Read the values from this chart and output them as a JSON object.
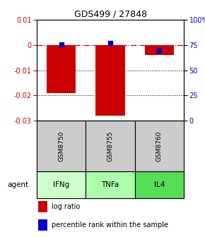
{
  "title": "GDS499 / 27848",
  "samples": [
    "GSM8750",
    "GSM8755",
    "GSM8760"
  ],
  "agents": [
    "IFNg",
    "TNFa",
    "IL4"
  ],
  "log_ratios": [
    -0.019,
    -0.028,
    -0.004
  ],
  "percentile_ranks": [
    75.5,
    77.0,
    69.0
  ],
  "ylim_left": [
    -0.03,
    0.01
  ],
  "ylim_right": [
    0,
    100
  ],
  "yticks_left": [
    0.01,
    0,
    -0.01,
    -0.02,
    -0.03
  ],
  "yticks_right": [
    100,
    75,
    50,
    25,
    0
  ],
  "bar_color": "#cc0000",
  "percentile_color": "#0000cc",
  "agent_colors": [
    "#ccffcc",
    "#aaffaa",
    "#55dd55"
  ],
  "sample_box_color": "#cccccc",
  "zero_line_color": "#cc0000",
  "grid_color": "#000000",
  "legend_bar_label": "log ratio",
  "legend_pct_label": "percentile rank within the sample",
  "bar_width": 0.6
}
